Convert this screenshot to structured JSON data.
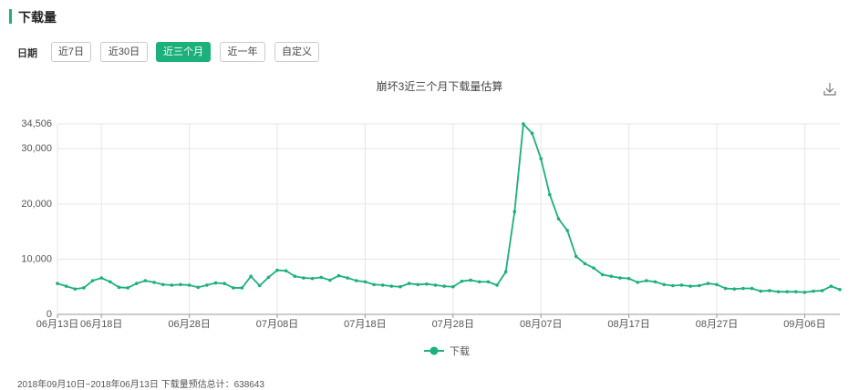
{
  "header": {
    "title": "下载量"
  },
  "filters": {
    "label": "日期",
    "options": [
      "近7日",
      "近30日",
      "近三个月",
      "近一年",
      "自定义"
    ]
  },
  "chart_data": {
    "type": "line",
    "title": "崩坏3近三个月下载量估算",
    "categories": [
      "06月13日",
      null,
      null,
      null,
      null,
      "06月18日",
      null,
      null,
      null,
      null,
      null,
      null,
      null,
      null,
      null,
      "06月28日",
      null,
      null,
      null,
      null,
      null,
      null,
      null,
      null,
      null,
      "07月08日",
      null,
      null,
      null,
      null,
      null,
      null,
      null,
      null,
      null,
      "07月18日",
      null,
      null,
      null,
      null,
      null,
      null,
      null,
      null,
      null,
      "07月28日",
      null,
      null,
      null,
      null,
      null,
      null,
      null,
      null,
      null,
      "08月07日",
      null,
      null,
      null,
      null,
      null,
      null,
      null,
      null,
      null,
      "08月17日",
      null,
      null,
      null,
      null,
      null,
      null,
      null,
      null,
      null,
      "08月27日",
      null,
      null,
      null,
      null,
      null,
      null,
      null,
      null,
      null,
      "09月06日",
      null,
      null,
      null,
      null
    ],
    "series": [
      {
        "name": "下载",
        "color": "#1cb07b",
        "values": [
          5600,
          5100,
          4600,
          4800,
          6100,
          6600,
          5900,
          4900,
          4800,
          5600,
          6100,
          5800,
          5400,
          5300,
          5400,
          5300,
          4900,
          5300,
          5700,
          5600,
          4800,
          4800,
          6900,
          5200,
          6700,
          8000,
          7900,
          6900,
          6600,
          6500,
          6700,
          6200,
          7000,
          6600,
          6100,
          5900,
          5400,
          5300,
          5100,
          5000,
          5600,
          5400,
          5500,
          5300,
          5100,
          5000,
          6000,
          6200,
          5900,
          5900,
          5300,
          7700,
          18600,
          34506,
          32800,
          28200,
          21700,
          17300,
          15200,
          10500,
          9200,
          8400,
          7200,
          6900,
          6600,
          6500,
          5800,
          6100,
          5900,
          5400,
          5200,
          5300,
          5100,
          5200,
          5600,
          5400,
          4700,
          4600,
          4700,
          4700,
          4200,
          4300,
          4100,
          4100,
          4100,
          4000,
          4200,
          4300,
          5100,
          4500
        ]
      }
    ],
    "ylim": [
      0,
      34506
    ],
    "yticks": [
      0,
      {
        "value": 10000,
        "label": "10,000"
      },
      {
        "value": 20000,
        "label": "20,000"
      },
      {
        "value": 30000,
        "label": "30,000"
      },
      {
        "value": 34506,
        "label": "34,506"
      }
    ],
    "grid": true,
    "legend": "bottom"
  },
  "footer": "2018年09月10日~2018年06月13日 下载量预估总计：638643"
}
